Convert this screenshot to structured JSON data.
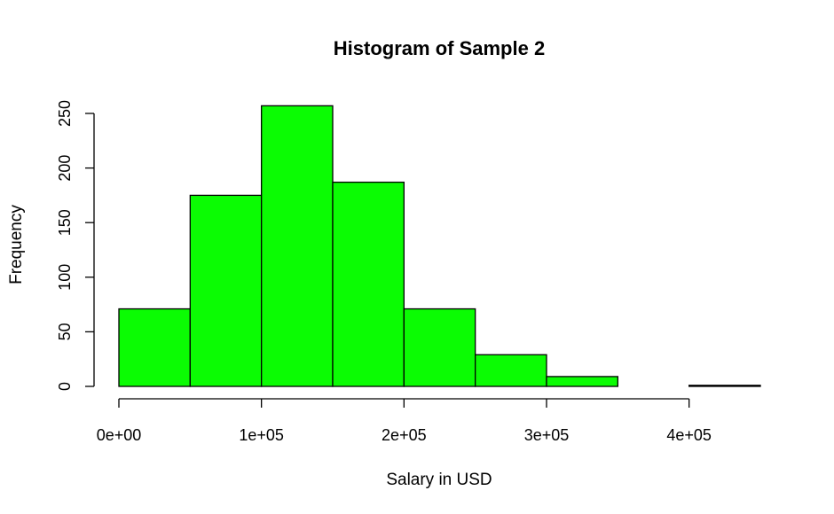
{
  "chart_data": {
    "type": "bar",
    "title": "Histogram of Sample 2",
    "xlabel": "Salary in USD",
    "ylabel": "Frequency",
    "bin_edges": [
      0,
      50000,
      100000,
      150000,
      200000,
      250000,
      300000,
      350000,
      400000,
      450000
    ],
    "values": [
      71,
      175,
      257,
      187,
      71,
      29,
      9,
      0,
      1
    ],
    "xlim": [
      0,
      450000
    ],
    "ylim": [
      0,
      260
    ],
    "x_ticks": [
      {
        "value": 0,
        "label": "0e+00"
      },
      {
        "value": 100000,
        "label": "1e+05"
      },
      {
        "value": 200000,
        "label": "2e+05"
      },
      {
        "value": 300000,
        "label": "3e+05"
      },
      {
        "value": 400000,
        "label": "4e+05"
      }
    ],
    "y_ticks": [
      {
        "value": 0,
        "label": "0"
      },
      {
        "value": 50,
        "label": "50"
      },
      {
        "value": 100,
        "label": "100"
      },
      {
        "value": 150,
        "label": "150"
      },
      {
        "value": 200,
        "label": "200"
      },
      {
        "value": 250,
        "label": "250"
      }
    ],
    "bar_color": "#0bfc03",
    "edge_color": "#000000",
    "grid": false,
    "legend": "none"
  }
}
